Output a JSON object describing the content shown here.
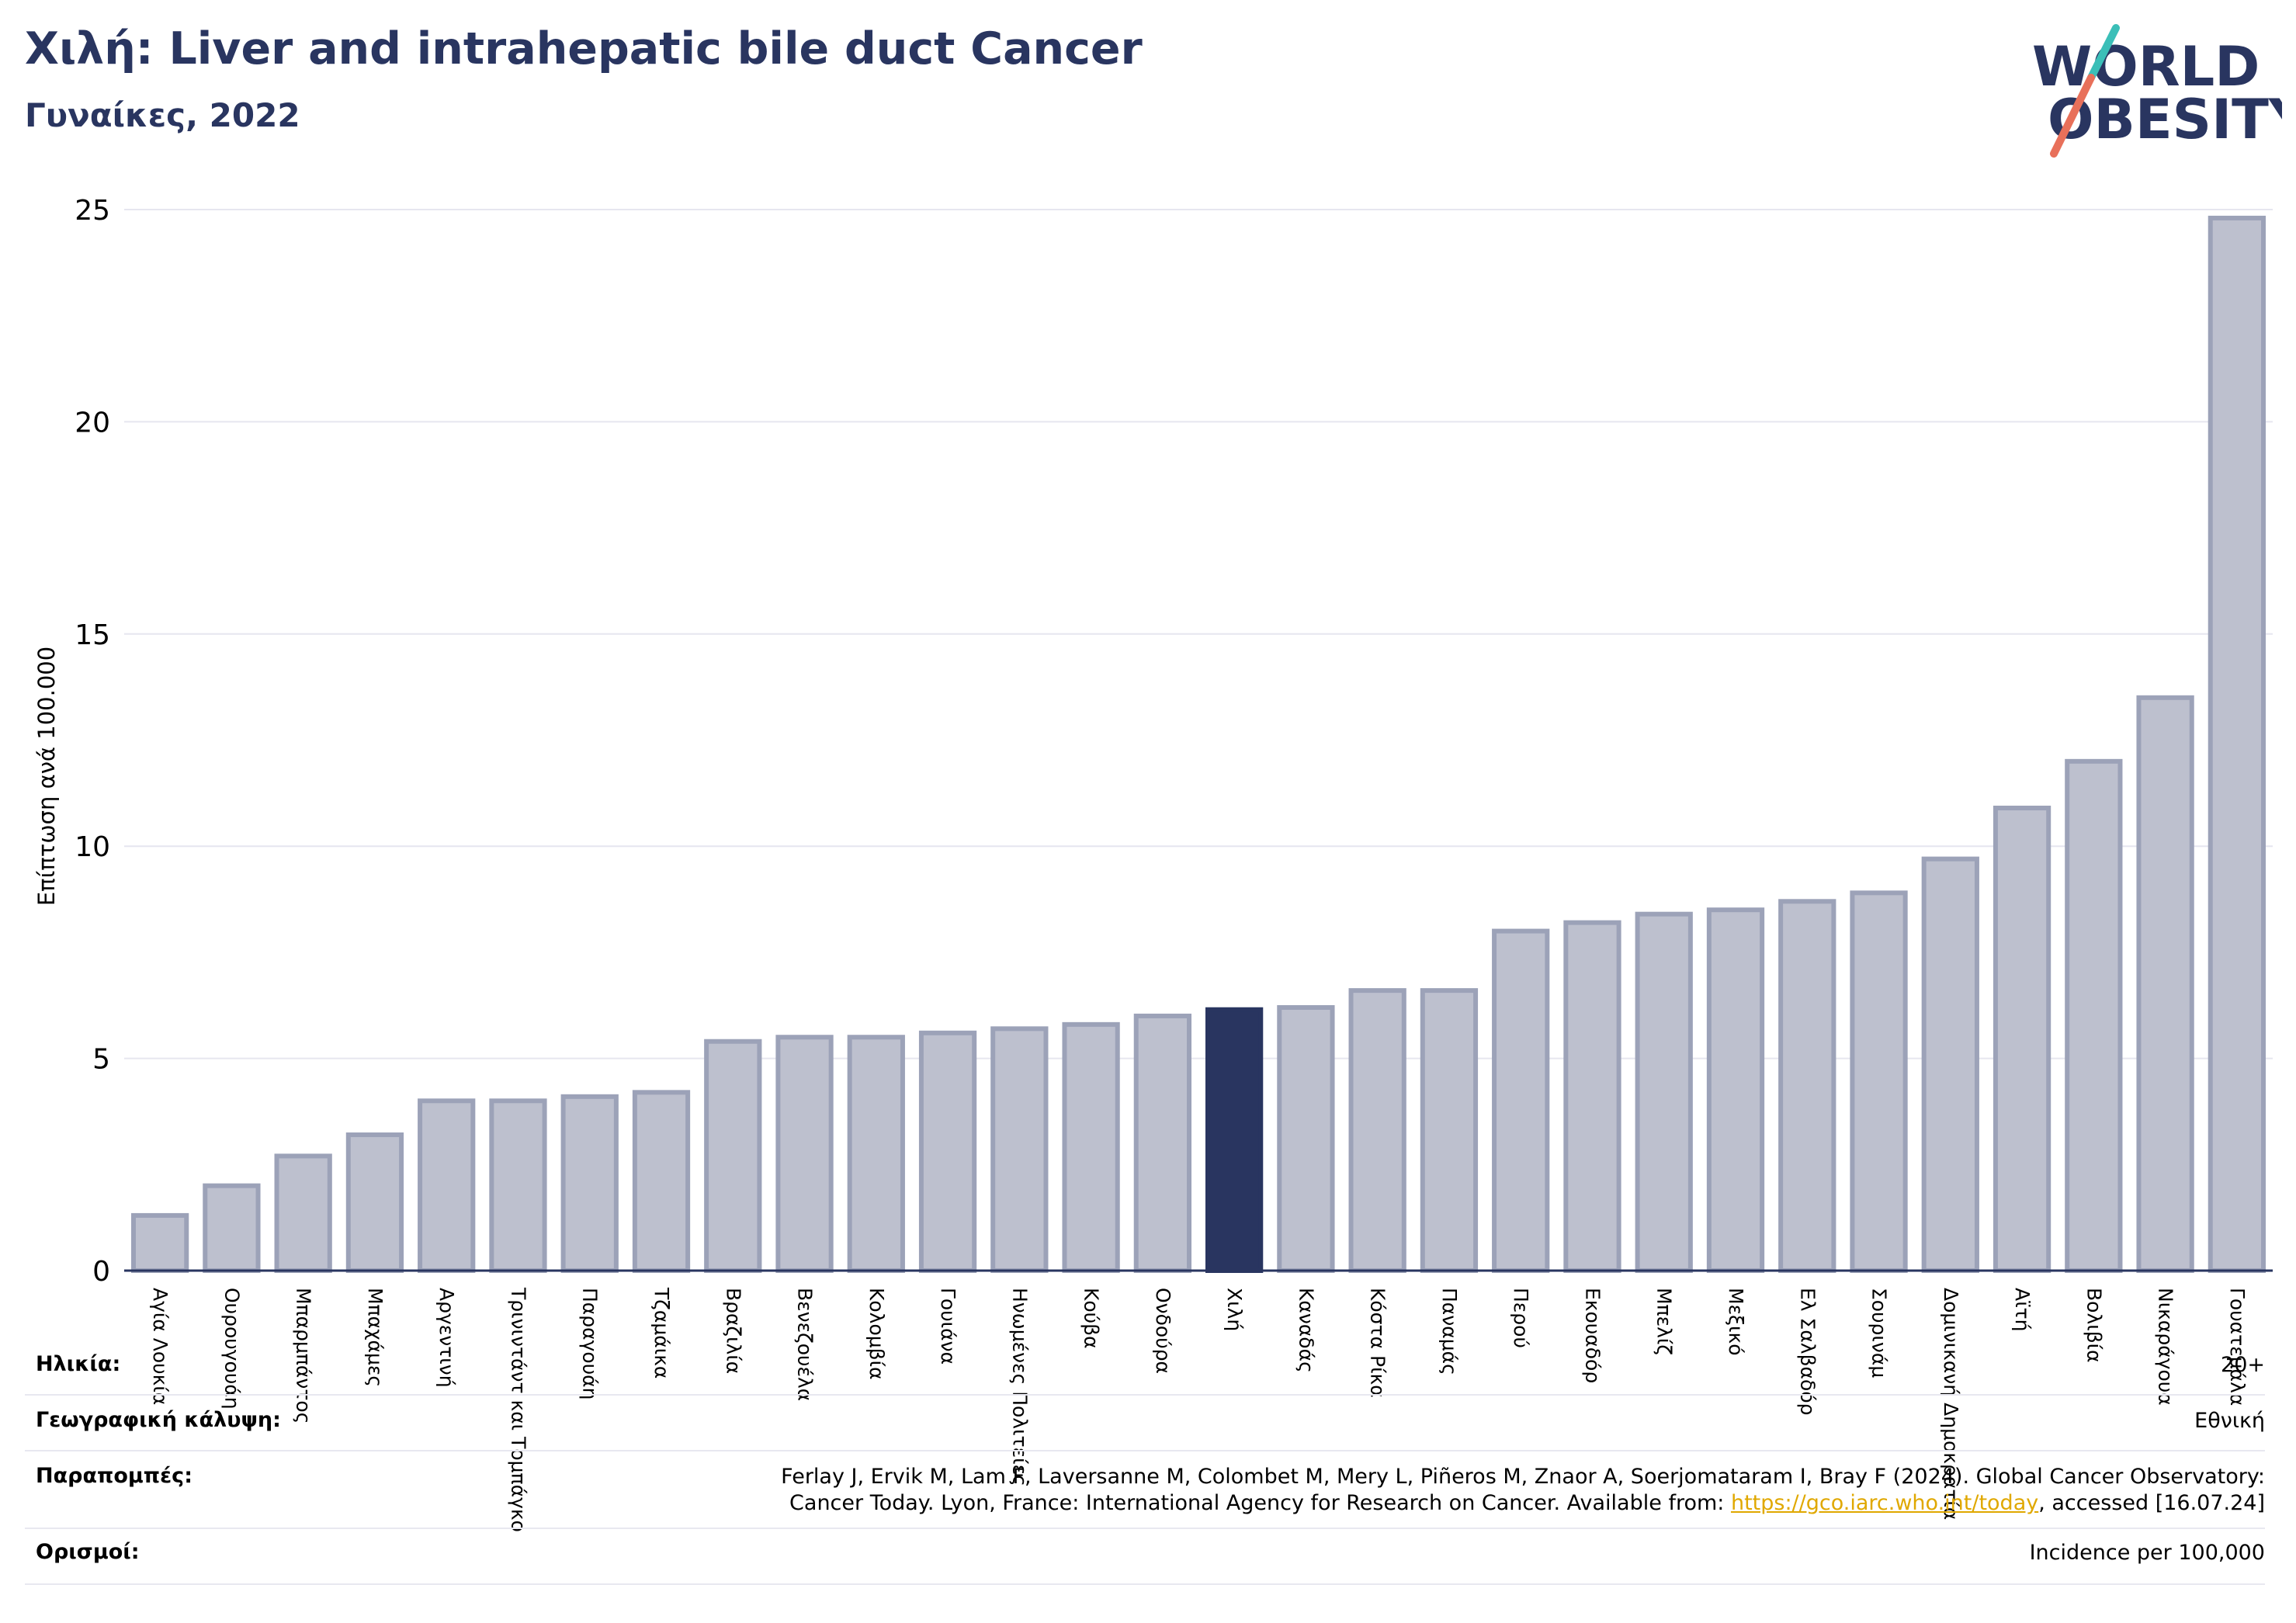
{
  "header": {
    "title": "Χιλή: Liver and intrahepatic bile duct Cancer",
    "subtitle": "Γυναίκες, 2022"
  },
  "logo": {
    "line1": "WORLD",
    "line2": "OBESITY"
  },
  "colors": {
    "bar": "#bdc0ce",
    "bar_stroke": "#9ca2b8",
    "highlight": "#293560",
    "title": "#293560",
    "logo_slash_top": "#3bbfb8",
    "logo_slash_bottom": "#e8705a",
    "link": "#e0a800"
  },
  "chart_data": {
    "type": "bar",
    "ylabel": "Επίπτωση ανά 100.000",
    "ylim": [
      0,
      25
    ],
    "yticks": [
      0,
      5,
      10,
      15,
      20,
      25
    ],
    "grid": true,
    "highlight": "Χιλή",
    "categories": [
      "Αγία Λουκία",
      "Ουρουγουάη",
      "Μπαρμπάντος",
      "Μπαχάμες",
      "Αργεντινή",
      "Τρινιντάντ και Τομπάγκο",
      "Παραγουάη",
      "Τζαμάικα",
      "Βραζιλία",
      "Βενεζουέλα",
      "Κολομβία",
      "Γουιάνα",
      "Ηνωμένες Πολιτείες",
      "Κούβα",
      "Ονδούρα",
      "Χιλή",
      "Καναδάς",
      "Κόστα Ρίκα",
      "Παναμάς",
      "Περού",
      "Εκουαδόρ",
      "Μπελίζ",
      "Μεξικό",
      "Ελ Σαλβαδόρ",
      "Σουρινάμ",
      "Δομινικανή Δημοκρατία",
      "Αϊτή",
      "Βολιβία",
      "Νικαράγουα",
      "Γουατεμάλα"
    ],
    "values": [
      1.3,
      2.0,
      2.7,
      3.2,
      4.0,
      4.0,
      4.1,
      4.2,
      5.4,
      5.5,
      5.5,
      5.6,
      5.7,
      5.8,
      6.0,
      6.15,
      6.2,
      6.6,
      6.6,
      8.0,
      8.2,
      8.4,
      8.5,
      8.7,
      8.9,
      9.7,
      10.9,
      12.0,
      13.5,
      24.8
    ]
  },
  "footer": {
    "age_label": "Ηλικία:",
    "age_value": "20+",
    "geo_label": "Γεωγραφική κάλυψη:",
    "geo_value": "Εθνική",
    "refs_label": "Παραπομπές:",
    "refs_line1": "Ferlay J, Ervik M, Lam F, Laversanne M, Colombet M, Mery L, Piñeros M, Znaor A, Soerjomataram I, Bray F (2024). Global Cancer Observatory:",
    "refs_line2_pre": "Cancer Today. Lyon, France: International Agency for Research on Cancer. Available from: ",
    "refs_link": "https://gco.iarc.who.int/today",
    "refs_line2_post": ", accessed [16.07.24]",
    "defs_label": "Ορισμοί:",
    "defs_value": "Incidence per 100,000"
  }
}
